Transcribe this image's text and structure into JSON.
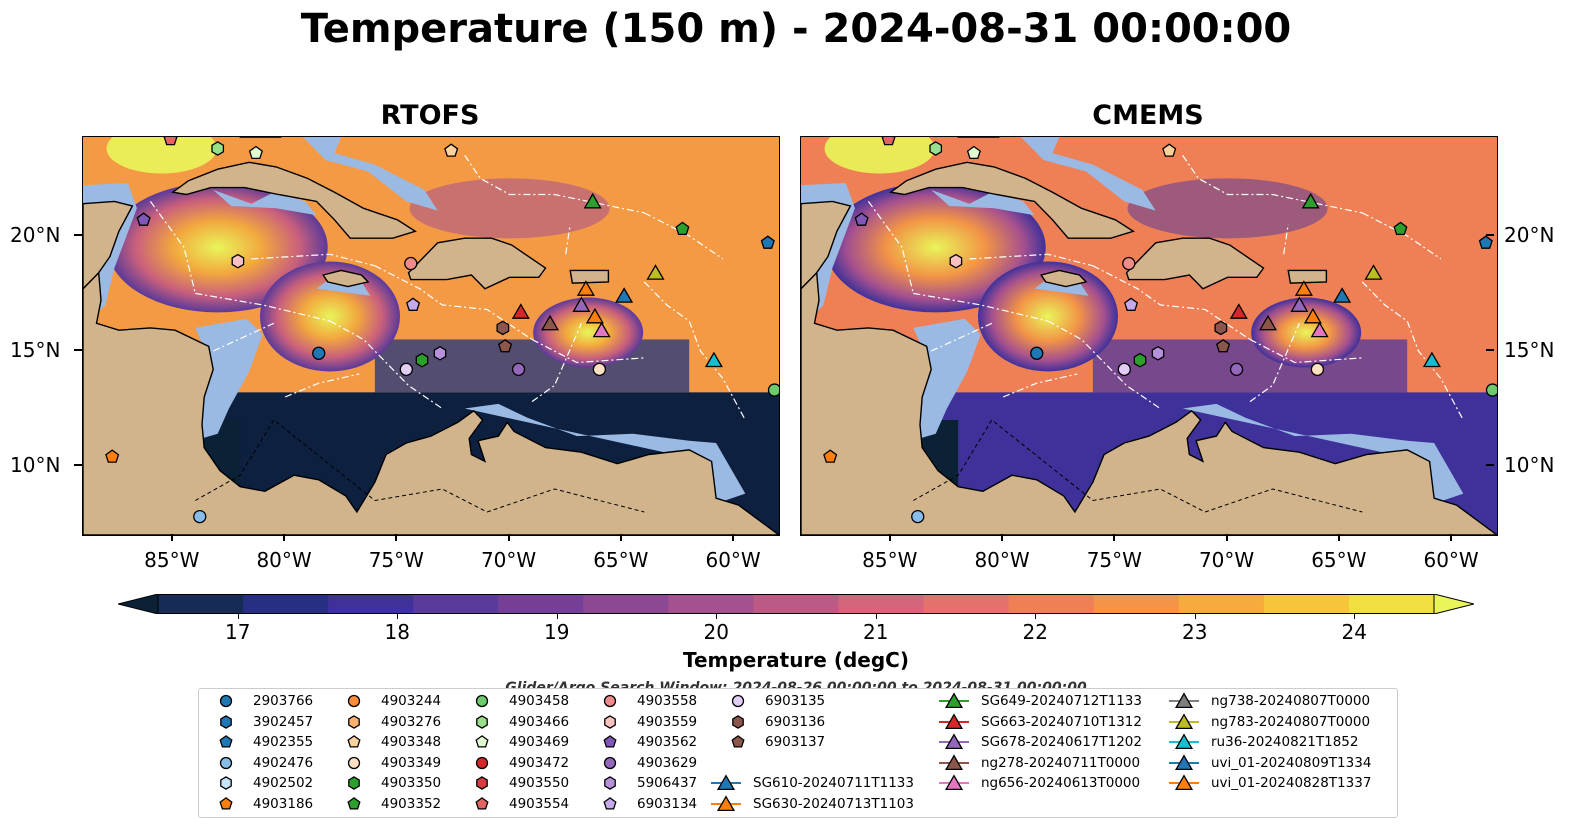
{
  "title": "Temperature (150 m) - 2024-08-31 00:00:00",
  "panels": [
    {
      "name": "RTOFS"
    },
    {
      "name": "CMEMS"
    }
  ],
  "map": {
    "lon_range": [
      -89,
      -58
    ],
    "lat_range": [
      7,
      24.3
    ],
    "lon_ticks": [
      -85,
      -80,
      -75,
      -70,
      -65,
      -60
    ],
    "lon_tick_labels": [
      "85°W",
      "80°W",
      "75°W",
      "70°W",
      "65°W",
      "60°W"
    ],
    "lat_ticks": [
      10,
      15,
      20
    ],
    "lat_tick_labels": [
      "10°N",
      "15°N",
      "20°N"
    ],
    "colors": {
      "ocean_shelf": "#9ab9e3",
      "land": "#d2b48c",
      "deep_cold": "#0d1f3c",
      "warm": "#f28b42",
      "hot": "#e9f55a"
    }
  },
  "colorbar": {
    "label": "Temperature (degC)",
    "min": 16.5,
    "max": 24.5,
    "ticks": [
      17,
      18,
      19,
      20,
      21,
      22,
      23,
      24
    ],
    "tick_labels": [
      "17",
      "18",
      "19",
      "20",
      "21",
      "22",
      "23",
      "24"
    ],
    "colors": [
      "#0b2136",
      "#162b55",
      "#262f82",
      "#3f319a",
      "#5a3a9a",
      "#753f97",
      "#8d4894",
      "#a5508f",
      "#bd5985",
      "#d4657a",
      "#e4716b",
      "#ef8056",
      "#f59447",
      "#f7ab3d",
      "#f6c539",
      "#f0df3e",
      "#e9f55a"
    ]
  },
  "search_window": "Glider/Argo Search Window: 2024-08-26 00:00:00 to 2024-08-31 00:00:00",
  "legend": [
    {
      "label": "2903766",
      "marker": "circle",
      "color": "#1f77b4",
      "lon": -78.5,
      "lat": 14.9
    },
    {
      "label": "3902457",
      "marker": "hexagon",
      "color": "#1f77b4"
    },
    {
      "label": "4902355",
      "marker": "pentagon",
      "color": "#1f77b4",
      "lon": -58.5,
      "lat": 19.7
    },
    {
      "label": "4902476",
      "marker": "circle",
      "color": "#87bde8",
      "lon": -83.8,
      "lat": 7.8
    },
    {
      "label": "4902502",
      "marker": "hexagon",
      "color": "#c6e4fb"
    },
    {
      "label": "4903186",
      "marker": "pentagon",
      "color": "#ff7f0e",
      "lon": -87.7,
      "lat": 10.4
    },
    {
      "label": "4903244",
      "marker": "circle",
      "color": "#ff8c36"
    },
    {
      "label": "4903276",
      "marker": "hexagon",
      "color": "#ffb070"
    },
    {
      "label": "4903348",
      "marker": "pentagon",
      "color": "#ffd29c",
      "lon": -72.6,
      "lat": 23.7
    },
    {
      "label": "4903349",
      "marker": "circle",
      "color": "#ffe0c4",
      "lon": -66,
      "lat": 14.2
    },
    {
      "label": "4903350",
      "marker": "hexagon",
      "color": "#2ca02c",
      "lon": -73.9,
      "lat": 14.6
    },
    {
      "label": "4903352",
      "marker": "pentagon",
      "color": "#2ca02c",
      "lon": -62.3,
      "lat": 20.3
    },
    {
      "label": "4903458",
      "marker": "circle",
      "color": "#6ccb6c",
      "lon": -58.2,
      "lat": 13.3
    },
    {
      "label": "4903466",
      "marker": "hexagon",
      "color": "#98df8a",
      "lon": -83,
      "lat": 23.8
    },
    {
      "label": "4903469",
      "marker": "pentagon",
      "color": "#e0fbd0",
      "lon": -81.3,
      "lat": 23.6
    },
    {
      "label": "4903472",
      "marker": "circle",
      "color": "#d62728"
    },
    {
      "label": "4903550",
      "marker": "hexagon",
      "color": "#d63d42"
    },
    {
      "label": "4903554",
      "marker": "pentagon",
      "color": "#e46464",
      "lon": -85.1,
      "lat": 24.2
    },
    {
      "label": "4903558",
      "marker": "circle",
      "color": "#f08b8b",
      "lon": -74.4,
      "lat": 18.8
    },
    {
      "label": "4903559",
      "marker": "hexagon",
      "color": "#fbc0c0",
      "lon": -82.1,
      "lat": 18.9
    },
    {
      "label": "4903562",
      "marker": "pentagon",
      "color": "#7e57b8",
      "lon": -86.3,
      "lat": 20.7
    },
    {
      "label": "4903629",
      "marker": "circle",
      "color": "#9467bd",
      "lon": -69.6,
      "lat": 14.2
    },
    {
      "label": "5906437",
      "marker": "hexagon",
      "color": "#b591db",
      "lon": -73.1,
      "lat": 14.9
    },
    {
      "label": "6903134",
      "marker": "pentagon",
      "color": "#c5a9ea",
      "lon": -74.3,
      "lat": 17
    },
    {
      "label": "6903135",
      "marker": "circle",
      "color": "#e2cdf7",
      "lon": -74.6,
      "lat": 14.2
    },
    {
      "label": "6903136",
      "marker": "hexagon",
      "color": "#8c564b",
      "lon": -70.3,
      "lat": 16
    },
    {
      "label": "6903137",
      "marker": "pentagon",
      "color": "#8c564b",
      "lon": -70.2,
      "lat": 15.2
    },
    {
      "label": "SG610-20240711T1133",
      "marker": "triangle",
      "color": "#1f77b4",
      "lon": -64.9,
      "lat": 17.4
    },
    {
      "label": "SG630-20240713T1103",
      "marker": "triangle",
      "color": "#ff7f0e",
      "lon": -66.6,
      "lat": 17.7
    },
    {
      "label": "SG649-20240712T1133",
      "marker": "triangle",
      "color": "#2ca02c",
      "lon": -66.3,
      "lat": 21.5
    },
    {
      "label": "SG663-20240710T1312",
      "marker": "triangle",
      "color": "#d62728",
      "lon": -69.5,
      "lat": 16.7
    },
    {
      "label": "SG678-20240617T1202",
      "marker": "triangle",
      "color": "#9467bd",
      "lon": -66.8,
      "lat": 17
    },
    {
      "label": "ng278-20240711T0000",
      "marker": "triangle",
      "color": "#8c564b",
      "lon": -68.2,
      "lat": 16.2
    },
    {
      "label": "ng656-20240613T0000",
      "marker": "triangle",
      "color": "#e377c2",
      "lon": -65.9,
      "lat": 15.9
    },
    {
      "label": "ng738-20240807T0000",
      "marker": "triangle",
      "color": "#7f7f7f"
    },
    {
      "label": "ng783-20240807T0000",
      "marker": "triangle",
      "color": "#bcbd22",
      "lon": -63.5,
      "lat": 18.4
    },
    {
      "label": "ru36-20240821T1852",
      "marker": "triangle",
      "color": "#17becf",
      "lon": -60.9,
      "lat": 14.6
    },
    {
      "label": "uvi_01-20240809T1334",
      "marker": "triangle",
      "color": "#1f77b4"
    },
    {
      "label": "uvi_01-20240828T1337",
      "marker": "triangle",
      "color": "#ff7f0e",
      "lon": -66.2,
      "lat": 16.5
    }
  ]
}
